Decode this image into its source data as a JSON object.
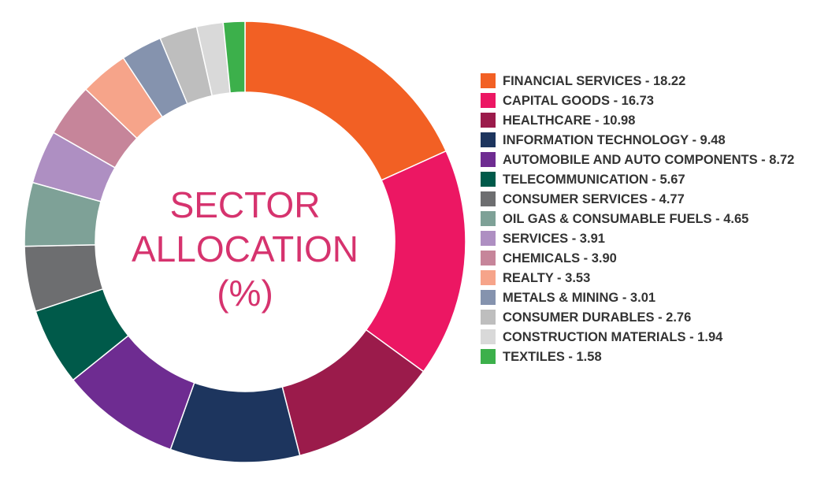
{
  "chart_data": {
    "type": "donut",
    "title": "SECTOR ALLOCATION (%)",
    "categories": [
      "FINANCIAL SERVICES - 18.22",
      "CAPITAL GOODS - 16.73",
      "HEALTHCARE - 10.98",
      "INFORMATION TECHNOLOGY - 9.48",
      "AUTOMOBILE AND AUTO COMPONENTS - 8.72",
      "TELECOMMUNICATION - 5.67",
      "CONSUMER SERVICES - 4.77",
      "OIL GAS & CONSUMABLE FUELS - 4.65",
      "SERVICES - 3.91",
      "CHEMICALS - 3.90",
      "REALTY - 3.53",
      "METALS & MINING - 3.01",
      "CONSUMER DURABLES - 2.76",
      "CONSTRUCTION MATERIALS - 1.94",
      "TEXTILES - 1.58"
    ],
    "values": [
      18.22,
      16.73,
      10.98,
      9.48,
      8.72,
      5.67,
      4.77,
      4.65,
      3.91,
      3.9,
      3.53,
      3.01,
      2.76,
      1.94,
      1.58
    ],
    "colors": [
      "#f26024",
      "#ec1763",
      "#9b1b4b",
      "#1d355e",
      "#6e2c91",
      "#005a4a",
      "#6d6e70",
      "#7ea197",
      "#ae8fc2",
      "#c6859a",
      "#f6a48a",
      "#8593ae",
      "#bebebe",
      "#d9d9d9",
      "#3cb04b"
    ]
  }
}
